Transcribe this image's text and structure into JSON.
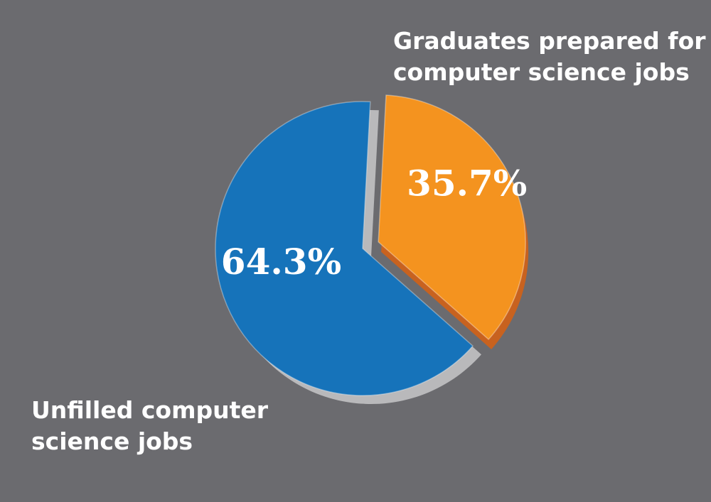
{
  "chart_data": {
    "type": "pie",
    "categories": [
      "Graduates prepared for computer science jobs",
      "Unfilled computer science jobs"
    ],
    "values": [
      35.7,
      64.3
    ],
    "value_labels": [
      "35.7%",
      "64.3%"
    ],
    "colors": [
      "#f4931f",
      "#1673ba"
    ]
  }
}
